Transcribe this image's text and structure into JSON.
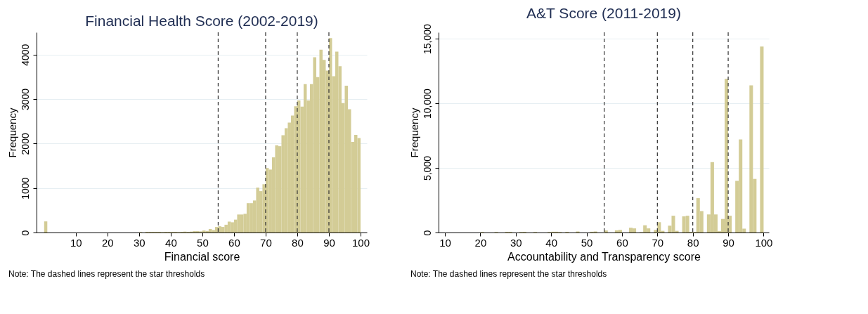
{
  "chart_data": [
    {
      "type": "histogram",
      "title": "Financial Health Score (2002-2019)",
      "xlabel": "Financial score",
      "ylabel": "Frequency",
      "color": "#d3cc96",
      "bins": [
        0,
        1,
        2,
        3,
        4,
        5,
        6,
        7,
        8,
        9,
        10,
        11,
        12,
        13,
        14,
        15,
        16,
        17,
        18,
        19,
        20,
        21,
        22,
        23,
        24,
        25,
        26,
        27,
        28,
        29,
        30,
        31,
        32,
        33,
        34,
        35,
        36,
        37,
        38,
        39,
        40,
        41,
        42,
        43,
        44,
        45,
        46,
        47,
        48,
        49,
        50,
        51,
        52,
        53,
        54,
        55,
        56,
        57,
        58,
        59,
        60,
        61,
        62,
        63,
        64,
        65,
        66,
        67,
        68,
        69,
        70,
        71,
        72,
        73,
        74,
        75,
        76,
        77,
        78,
        79,
        80,
        81,
        82,
        83,
        84,
        85,
        86,
        87,
        88,
        89,
        90,
        91,
        92,
        93,
        94,
        95,
        96,
        97,
        98,
        99,
        100
      ],
      "values": [
        250,
        0,
        0,
        0,
        0,
        0,
        0,
        0,
        0,
        0,
        0,
        0,
        0,
        0,
        0,
        0,
        0,
        0,
        0,
        0,
        0,
        0,
        0,
        0,
        0,
        0,
        0,
        0,
        0,
        0,
        10,
        0,
        15,
        15,
        15,
        15,
        15,
        10,
        15,
        15,
        15,
        15,
        10,
        15,
        20,
        15,
        20,
        30,
        30,
        25,
        45,
        35,
        80,
        55,
        125,
        140,
        125,
        175,
        245,
        230,
        290,
        405,
        405,
        420,
        660,
        660,
        720,
        1010,
        930,
        1085,
        1450,
        1415,
        1690,
        1960,
        1940,
        2185,
        2345,
        2470,
        2630,
        2840,
        2970,
        2830,
        3335,
        2970,
        3335,
        3940,
        3495,
        4110,
        3880,
        3640,
        4370,
        3515,
        4065,
        3740,
        2910,
        3300,
        2770,
        2035,
        2195,
        2125
      ],
      "xlim": [
        -2.4,
        102
      ],
      "xticks": [
        10,
        20,
        30,
        40,
        50,
        60,
        70,
        80,
        90,
        100
      ],
      "ylim": [
        0,
        4500
      ],
      "yticks": [
        0,
        1000,
        2000,
        3000,
        4000
      ],
      "grid": "y",
      "ref_lines": [
        {
          "axis": "x",
          "value": 55,
          "line_style": "dashed",
          "color": "#333333"
        },
        {
          "axis": "x",
          "value": 70,
          "line_style": "dashed",
          "color": "#333333"
        },
        {
          "axis": "x",
          "value": 80,
          "line_style": "dashed",
          "color": "#333333"
        },
        {
          "axis": "x",
          "value": 90,
          "line_style": "dashed",
          "color": "#333333"
        }
      ],
      "annotations": [
        "Note: The dashed lines represent the star thresholds"
      ]
    },
    {
      "type": "histogram",
      "title": "A&T Score (2011-2019)",
      "xlabel": "Accountability and Transparency score",
      "ylabel": "Frequency",
      "color": "#d3cc96",
      "bins": [
        10,
        11,
        12,
        13,
        14,
        15,
        16,
        17,
        18,
        19,
        20,
        21,
        22,
        23,
        24,
        25,
        26,
        27,
        28,
        29,
        30,
        31,
        32,
        33,
        34,
        35,
        36,
        37,
        38,
        39,
        40,
        41,
        42,
        43,
        44,
        45,
        46,
        47,
        48,
        49,
        50,
        51,
        52,
        53,
        54,
        55,
        56,
        57,
        58,
        59,
        60,
        61,
        62,
        63,
        64,
        65,
        66,
        67,
        68,
        69,
        70,
        71,
        72,
        73,
        74,
        75,
        76,
        77,
        78,
        79,
        80,
        81,
        82,
        83,
        84,
        85,
        86,
        87,
        88,
        89,
        90,
        91,
        92,
        93,
        94,
        95,
        96,
        97,
        98,
        99,
        100
      ],
      "values": [
        0,
        0,
        0,
        0,
        0,
        0,
        0,
        0,
        0,
        0,
        40,
        0,
        0,
        0,
        40,
        0,
        0,
        50,
        50,
        0,
        0,
        40,
        50,
        0,
        0,
        40,
        0,
        0,
        0,
        40,
        60,
        60,
        40,
        0,
        50,
        0,
        0,
        80,
        0,
        0,
        0,
        60,
        80,
        0,
        0,
        160,
        0,
        0,
        170,
        200,
        0,
        0,
        370,
        320,
        0,
        30,
        560,
        320,
        0,
        200,
        800,
        130,
        0,
        530,
        1300,
        130,
        0,
        1250,
        1300,
        50,
        50,
        2660,
        1660,
        0,
        1400,
        5450,
        1400,
        100,
        1050,
        11900,
        1300,
        0,
        4000,
        7200,
        300,
        0,
        11400,
        4150,
        0,
        14400
      ],
      "xlim": [
        8.2,
        101.5
      ],
      "xticks": [
        10,
        20,
        30,
        40,
        50,
        60,
        70,
        80,
        90,
        100
      ],
      "ylim": [
        0,
        15500
      ],
      "yticks": [
        0,
        {
          "value": 5000,
          "label": "5,000"
        },
        {
          "value": 10000,
          "label": "10,000"
        },
        {
          "value": 15000,
          "label": "15,000"
        }
      ],
      "grid": "y",
      "ref_lines": [
        {
          "axis": "x",
          "value": 55,
          "line_style": "dashed",
          "color": "#333333"
        },
        {
          "axis": "x",
          "value": 70,
          "line_style": "dashed",
          "color": "#333333"
        },
        {
          "axis": "x",
          "value": 80,
          "line_style": "dashed",
          "color": "#333333"
        },
        {
          "axis": "x",
          "value": 90,
          "line_style": "dashed",
          "color": "#333333"
        }
      ],
      "annotations": [
        "Note: The dashed lines represent the star thresholds"
      ]
    }
  ]
}
